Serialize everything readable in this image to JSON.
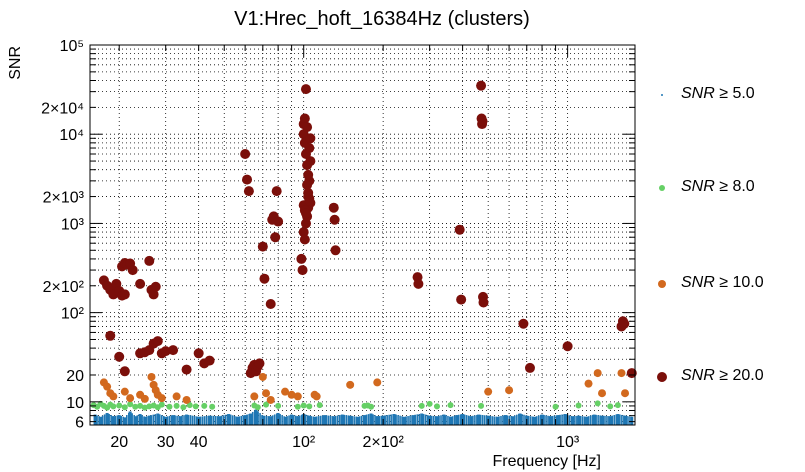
{
  "chart_data": {
    "type": "scatter",
    "title": "V1:Hrec_hoft_16384Hz (clusters)",
    "xlabel": "Frequency [Hz]",
    "ylabel": "SNR",
    "x_scale": "log",
    "y_scale": "log",
    "xlim": [
      15.5,
      1800
    ],
    "ylim": [
      5.5,
      100000
    ],
    "grid": true,
    "x_ticks": [
      {
        "value": 20,
        "label": "20"
      },
      {
        "value": 30,
        "label": "30"
      },
      {
        "value": 40,
        "label": "40"
      },
      {
        "value": 100,
        "label": "10²"
      },
      {
        "value": 200,
        "label": "2×10²"
      },
      {
        "value": 1000,
        "label": "10³"
      }
    ],
    "y_ticks": [
      {
        "value": 6,
        "label": "6"
      },
      {
        "value": 10,
        "label": "10"
      },
      {
        "value": 20,
        "label": "20"
      },
      {
        "value": 100,
        "label": "10²"
      },
      {
        "value": 200,
        "label": "2×10²"
      },
      {
        "value": 1000,
        "label": "10³"
      },
      {
        "value": 2000,
        "label": "2×10³"
      },
      {
        "value": 10000,
        "label": "10⁴"
      },
      {
        "value": 20000,
        "label": "2×10⁴"
      },
      {
        "value": 100000,
        "label": "10⁵"
      }
    ],
    "legend_position": "right",
    "series": [
      {
        "name": "SNR ≥ 5.0",
        "label_var": "SNR",
        "label_rest": " ≥ 5.0",
        "color": "#1f77b4",
        "style": "bars",
        "points": [
          [
            16.2,
            7.2
          ],
          [
            17,
            6.8
          ],
          [
            18,
            7.5
          ],
          [
            19,
            6.9
          ],
          [
            20,
            7.1
          ],
          [
            21,
            6.7
          ],
          [
            22,
            7.8
          ],
          [
            23,
            6.9
          ],
          [
            24,
            7.3
          ],
          [
            25,
            6.8
          ],
          [
            26,
            7.0
          ],
          [
            28,
            7.4
          ],
          [
            30,
            6.8
          ],
          [
            32,
            7.1
          ],
          [
            34,
            6.9
          ],
          [
            36,
            7.2
          ],
          [
            40,
            6.8
          ],
          [
            44,
            7.0
          ],
          [
            48,
            6.9
          ],
          [
            52,
            7.3
          ],
          [
            56,
            6.8
          ],
          [
            60,
            7.1
          ],
          [
            63,
            7.4
          ],
          [
            66,
            8.2
          ],
          [
            70,
            7.0
          ],
          [
            75,
            6.9
          ],
          [
            80,
            7.5
          ],
          [
            85,
            6.8
          ],
          [
            90,
            7.2
          ],
          [
            95,
            6.9
          ],
          [
            100,
            7.3
          ],
          [
            105,
            7.0
          ],
          [
            110,
            6.8
          ],
          [
            120,
            7.1
          ],
          [
            130,
            6.9
          ],
          [
            140,
            7.2
          ],
          [
            150,
            7.0
          ],
          [
            160,
            6.8
          ],
          [
            170,
            7.1
          ],
          [
            180,
            7.4
          ],
          [
            190,
            6.9
          ],
          [
            200,
            7.0
          ],
          [
            220,
            7.3
          ],
          [
            240,
            6.8
          ],
          [
            260,
            7.1
          ],
          [
            280,
            7.4
          ],
          [
            300,
            7.0
          ],
          [
            320,
            6.9
          ],
          [
            340,
            7.2
          ],
          [
            360,
            6.8
          ],
          [
            380,
            7.1
          ],
          [
            400,
            7.3
          ],
          [
            430,
            6.9
          ],
          [
            460,
            7.2
          ],
          [
            500,
            7.0
          ],
          [
            540,
            6.8
          ],
          [
            580,
            7.1
          ],
          [
            620,
            6.9
          ],
          [
            660,
            7.4
          ],
          [
            700,
            7.0
          ],
          [
            750,
            6.8
          ],
          [
            800,
            7.2
          ],
          [
            860,
            6.9
          ],
          [
            920,
            7.1
          ],
          [
            980,
            7.3
          ],
          [
            1040,
            6.9
          ],
          [
            1100,
            7.0
          ],
          [
            1180,
            6.8
          ],
          [
            1260,
            7.2
          ],
          [
            1350,
            7.0
          ],
          [
            1450,
            6.9
          ],
          [
            1550,
            7.3
          ],
          [
            1650,
            7.0
          ],
          [
            1750,
            6.8
          ]
        ]
      },
      {
        "name": "SNR ≥ 8.0",
        "label_var": "SNR",
        "label_rest": " ≥ 8.0",
        "color": "#66d066",
        "style": "dot",
        "points": [
          [
            16,
            9.2
          ],
          [
            16.5,
            8.8
          ],
          [
            17,
            9.5
          ],
          [
            17.5,
            9.0
          ],
          [
            18,
            8.6
          ],
          [
            18.5,
            9.3
          ],
          [
            19,
            8.9
          ],
          [
            20,
            9.1
          ],
          [
            21,
            8.7
          ],
          [
            22,
            9.4
          ],
          [
            23,
            8.8
          ],
          [
            24,
            9.0
          ],
          [
            25,
            8.6
          ],
          [
            26,
            8.9
          ],
          [
            27,
            9.1
          ],
          [
            28,
            8.7
          ],
          [
            29,
            9.3
          ],
          [
            31,
            8.8
          ],
          [
            33,
            9.0
          ],
          [
            35,
            8.7
          ],
          [
            37,
            9.2
          ],
          [
            39,
            8.9
          ],
          [
            42,
            9.0
          ],
          [
            45,
            8.8
          ],
          [
            65,
            9.1
          ],
          [
            67,
            8.7
          ],
          [
            72,
            9.3
          ],
          [
            80,
            9.0
          ],
          [
            95,
            8.8
          ],
          [
            100,
            9.1
          ],
          [
            105,
            8.9
          ],
          [
            115,
            9.2
          ],
          [
            170,
            9.0
          ],
          [
            175,
            9.1
          ],
          [
            180,
            8.8
          ],
          [
            280,
            9.0
          ],
          [
            300,
            9.5
          ],
          [
            320,
            8.9
          ],
          [
            360,
            9.2
          ],
          [
            470,
            9.0
          ],
          [
            900,
            8.8
          ],
          [
            1100,
            9.1
          ],
          [
            1300,
            9.6
          ],
          [
            1450,
            8.9
          ],
          [
            1550,
            9.2
          ]
        ]
      },
      {
        "name": "SNR ≥ 10.0",
        "label_var": "SNR",
        "label_rest": " ≥ 10.0",
        "color": "#d2691e",
        "style": "dot",
        "points": [
          [
            17.5,
            16.5
          ],
          [
            18,
            14.8
          ],
          [
            18.5,
            12.5
          ],
          [
            19,
            11.5
          ],
          [
            21,
            13.0
          ],
          [
            22,
            11.0
          ],
          [
            24,
            12.0
          ],
          [
            25,
            10.8
          ],
          [
            26.5,
            19.0
          ],
          [
            27,
            15.5
          ],
          [
            27.5,
            13.5
          ],
          [
            28,
            12.0
          ],
          [
            29,
            11.0
          ],
          [
            33,
            11.5
          ],
          [
            36,
            10.5
          ],
          [
            65,
            11.5
          ],
          [
            70,
            19.0
          ],
          [
            72,
            12.5
          ],
          [
            75,
            10.5
          ],
          [
            85,
            13.0
          ],
          [
            90,
            12.0
          ],
          [
            95,
            11.5
          ],
          [
            110,
            12.0
          ],
          [
            112,
            11.5
          ],
          [
            150,
            15.5
          ],
          [
            190,
            16.5
          ],
          [
            500,
            13.0
          ],
          [
            600,
            13.5
          ],
          [
            1200,
            16.0
          ],
          [
            1300,
            21.0
          ],
          [
            1350,
            12.5
          ],
          [
            1600,
            21.0
          ],
          [
            1650,
            12.5
          ]
        ]
      },
      {
        "name": "SNR ≥ 20.0",
        "label_var": "SNR",
        "label_rest": " ≥ 20.0",
        "color": "#7b0f0a",
        "style": "dot",
        "points": [
          [
            17.5,
            230
          ],
          [
            18,
            200
          ],
          [
            18.5,
            180
          ],
          [
            19,
            160
          ],
          [
            19.5,
            210
          ],
          [
            20,
            175
          ],
          [
            20.5,
            155
          ],
          [
            21,
            160
          ],
          [
            20.5,
            330
          ],
          [
            21,
            360
          ],
          [
            21.5,
            345
          ],
          [
            22,
            355
          ],
          [
            22.5,
            300
          ],
          [
            24,
            210
          ],
          [
            26,
            380
          ],
          [
            26.5,
            180
          ],
          [
            27,
            160
          ],
          [
            27.5,
            195
          ],
          [
            18.5,
            55
          ],
          [
            20,
            32
          ],
          [
            21,
            22
          ],
          [
            24,
            35
          ],
          [
            25,
            36
          ],
          [
            26,
            38
          ],
          [
            27,
            45
          ],
          [
            28,
            48
          ],
          [
            29,
            35
          ],
          [
            30,
            37
          ],
          [
            32,
            38
          ],
          [
            36,
            23
          ],
          [
            40,
            35
          ],
          [
            42,
            27
          ],
          [
            44,
            29
          ],
          [
            60,
            6000
          ],
          [
            61,
            3100
          ],
          [
            62,
            2300
          ],
          [
            63,
            21
          ],
          [
            64,
            24
          ],
          [
            65,
            26
          ],
          [
            66,
            22
          ],
          [
            67,
            25
          ],
          [
            68,
            27
          ],
          [
            70,
            550
          ],
          [
            71,
            240
          ],
          [
            75,
            125
          ],
          [
            76,
            1100
          ],
          [
            77,
            1200
          ],
          [
            78,
            700
          ],
          [
            79,
            2300
          ],
          [
            80,
            1050
          ],
          [
            98,
            400
          ],
          [
            99,
            300
          ],
          [
            100,
            800
          ],
          [
            101,
            660
          ],
          [
            102,
            1000
          ],
          [
            103,
            1200
          ],
          [
            104,
            1500
          ],
          [
            105,
            3000
          ],
          [
            106,
            5000
          ],
          [
            100,
            10000
          ],
          [
            101,
            8000
          ],
          [
            102,
            6000
          ],
          [
            103,
            4500
          ],
          [
            104,
            3500
          ],
          [
            105,
            7000
          ],
          [
            106,
            9000
          ],
          [
            100,
            13000
          ],
          [
            101,
            15000
          ],
          [
            102,
            32000
          ],
          [
            103,
            12000
          ],
          [
            104,
            2200
          ],
          [
            105,
            1900
          ],
          [
            106,
            1700
          ],
          [
            100,
            1600
          ],
          [
            101,
            1400
          ],
          [
            102,
            1300
          ],
          [
            103,
            2700
          ],
          [
            104,
            2000
          ],
          [
            105,
            1800
          ],
          [
            130,
            1500
          ],
          [
            131,
            1100
          ],
          [
            132,
            500
          ],
          [
            270,
            250
          ],
          [
            272,
            210
          ],
          [
            390,
            850
          ],
          [
            395,
            140
          ],
          [
            470,
            35000
          ],
          [
            472,
            15000
          ],
          [
            474,
            13000
          ],
          [
            476,
            14000
          ],
          [
            478,
            150
          ],
          [
            480,
            130
          ],
          [
            680,
            75
          ],
          [
            720,
            24
          ],
          [
            1000,
            42
          ],
          [
            1600,
            70
          ],
          [
            1620,
            80
          ],
          [
            1640,
            75
          ],
          [
            1750,
            21
          ]
        ]
      }
    ]
  }
}
